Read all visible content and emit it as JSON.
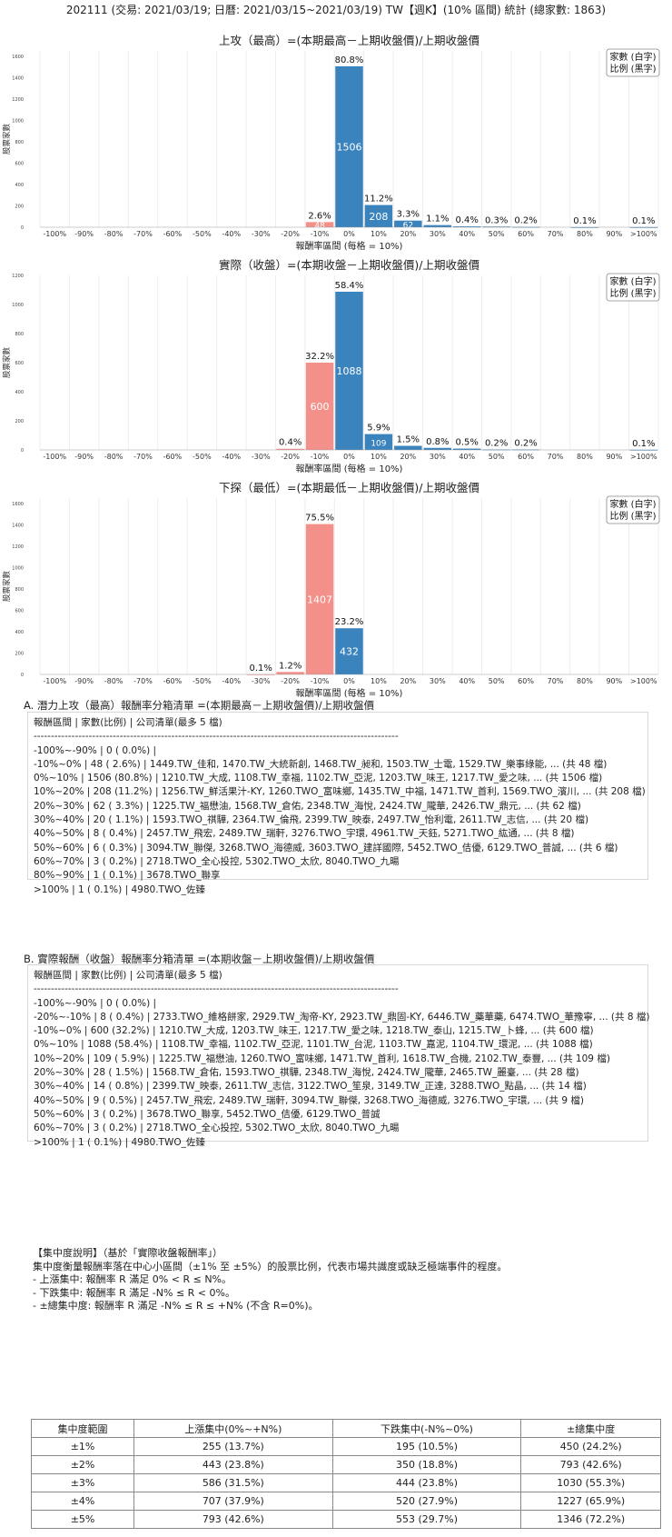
{
  "page_title": "202111 (交易: 2021/03/19; 日曆: 2021/03/15~2021/03/19) TW【週K】(10% 區間) 統計 (總家數: 1863)",
  "chart_data": [
    {
      "type": "bar",
      "title": "上攻（最高）=(本期最高－上期收盤價)/上期收盤價",
      "xlabel": "報酬率區間 (每格 = 10%)",
      "ylabel": "股票家數",
      "legend": [
        "家數 (白字)",
        "比例 (黑字)"
      ],
      "legend_position": "top-right",
      "categories": [
        "-100%",
        "-90%",
        "-80%",
        "-70%",
        "-60%",
        "-50%",
        "-40%",
        "-30%",
        "-20%",
        "-10%",
        "0%",
        "10%",
        "20%",
        "30%",
        "40%",
        "50%",
        "60%",
        "70%",
        "80%",
        "90%",
        ">100%"
      ],
      "values": [
        0,
        0,
        0,
        0,
        0,
        0,
        0,
        0,
        0,
        48,
        1506,
        208,
        62,
        20,
        8,
        6,
        3,
        0,
        1,
        0,
        1
      ],
      "pct_labels": [
        "",
        "",
        "",
        "",
        "",
        "",
        "",
        "",
        "",
        "2.6%",
        "80.8%",
        "11.2%",
        "3.3%",
        "1.1%",
        "0.4%",
        "0.3%",
        "0.2%",
        "",
        "0.1%",
        "",
        "0.1%"
      ],
      "count_labels": [
        "",
        "",
        "",
        "",
        "",
        "",
        "",
        "",
        "",
        "48",
        "1506",
        "208",
        "62",
        "",
        "",
        "",
        "",
        "",
        "",
        "",
        ""
      ],
      "yticks": [
        0,
        200,
        400,
        600,
        800,
        1000,
        1200,
        1400,
        1600
      ],
      "ylim": [
        0,
        1650
      ],
      "colors": {
        "positive": "#3b83bd",
        "negative": "#f4908a"
      }
    },
    {
      "type": "bar",
      "title": "實際（收盤）=(本期收盤－上期收盤價)/上期收盤價",
      "xlabel": "報酬率區間 (每格 = 10%)",
      "ylabel": "股票家數",
      "legend": [
        "家數 (白字)",
        "比例 (黑字)"
      ],
      "legend_position": "top-right",
      "categories": [
        "-100%",
        "-90%",
        "-80%",
        "-70%",
        "-60%",
        "-50%",
        "-40%",
        "-30%",
        "-20%",
        "-10%",
        "0%",
        "10%",
        "20%",
        "30%",
        "40%",
        "50%",
        "60%",
        "70%",
        "80%",
        "90%",
        ">100%"
      ],
      "values": [
        0,
        0,
        0,
        0,
        0,
        0,
        0,
        0,
        8,
        600,
        1088,
        109,
        28,
        14,
        9,
        3,
        3,
        0,
        0,
        0,
        1
      ],
      "pct_labels": [
        "",
        "",
        "",
        "",
        "",
        "",
        "",
        "",
        "0.4%",
        "32.2%",
        "58.4%",
        "5.9%",
        "1.5%",
        "0.8%",
        "0.5%",
        "0.2%",
        "0.2%",
        "",
        "",
        "",
        "0.1%"
      ],
      "count_labels": [
        "",
        "",
        "",
        "",
        "",
        "",
        "",
        "",
        "",
        "600",
        "1088",
        "109",
        "",
        "",
        "",
        "",
        "",
        "",
        "",
        "",
        ""
      ],
      "yticks": [
        0,
        200,
        400,
        600,
        800,
        1000,
        1200
      ],
      "ylim": [
        0,
        1200
      ],
      "colors": {
        "positive": "#3b83bd",
        "negative": "#f4908a"
      }
    },
    {
      "type": "bar",
      "title": "下探（最低）=(本期最低－上期收盤價)/上期收盤價",
      "xlabel": "報酬率區間 (每格 = 10%)",
      "ylabel": "股票家數",
      "legend": [
        "家數 (白字)",
        "比例 (黑字)"
      ],
      "legend_position": "top-right",
      "categories": [
        "-100%",
        "-90%",
        "-80%",
        "-70%",
        "-60%",
        "-50%",
        "-40%",
        "-30%",
        "-20%",
        "-10%",
        "0%",
        "10%",
        "20%",
        "30%",
        "40%",
        "50%",
        "60%",
        "70%",
        "80%",
        "90%",
        ">100%"
      ],
      "values": [
        0,
        0,
        0,
        0,
        0,
        0,
        0,
        1,
        23,
        1407,
        432,
        0,
        0,
        0,
        0,
        0,
        0,
        0,
        0,
        0,
        0
      ],
      "pct_labels": [
        "",
        "",
        "",
        "",
        "",
        "",
        "",
        "0.1%",
        "1.2%",
        "75.5%",
        "23.2%",
        "",
        "",
        "",
        "",
        "",
        "",
        "",
        "",
        "",
        ""
      ],
      "count_labels": [
        "",
        "",
        "",
        "",
        "",
        "",
        "",
        "",
        "",
        "1407",
        "432",
        "",
        "",
        "",
        "",
        "",
        "",
        "",
        "",
        "",
        ""
      ],
      "yticks": [
        0,
        200,
        400,
        600,
        800,
        1000,
        1200,
        1400,
        1600
      ],
      "ylim": [
        0,
        1650
      ],
      "colors": {
        "positive": "#3b83bd",
        "negative": "#f4908a"
      }
    }
  ],
  "section_a": {
    "heading": "A. 潛力上攻（最高）報酬率分箱清單 =(本期最高－上期收盤價)/上期收盤價",
    "lines": [
      "報酬區間       | 家數(比例)       | 公司清單(最多 5 檔)",
      "----------------------------------------------------------------------------------------------------------",
      "-100%~-90%   |      0 ( 0.0%) |",
      "-10%~0%      |     48 ( 2.6%) | 1449.TW_佳和, 1470.TW_大統新創, 1468.TW_昶和, 1503.TW_士電, 1529.TW_樂事綠能, ... (共 48 檔)",
      "0%~10%       | 1506 (80.8%) | 1210.TW_大成, 1108.TW_幸福, 1102.TW_亞泥, 1203.TW_味王, 1217.TW_愛之味, ... (共 1506 檔)",
      "10%~20%      |   208 (11.2%) | 1256.TW_鮮活果汁-KY, 1260.TWO_富味鄉, 1435.TW_中福, 1471.TW_首利, 1569.TWO_濱川, ... (共 208 檔)",
      "20%~30%      |     62 ( 3.3%) | 1225.TW_福懋油, 1568.TW_倉佑, 2348.TW_海悅, 2424.TW_隴華, 2426.TW_鼎元, ... (共 62 檔)",
      "30%~40%      |     20 ( 1.1%) | 1593.TWO_祺驊, 2364.TW_倫飛, 2399.TW_映泰, 2497.TW_怡利電, 2611.TW_志信, ... (共 20 檔)",
      "40%~50%      |       8 ( 0.4%) | 2457.TW_飛宏, 2489.TW_瑞軒, 3276.TWO_宇環, 4961.TW_天鈺, 5271.TWO_紘通, ... (共 8 檔)",
      "50%~60%      |       6 ( 0.3%) | 3094.TW_聯傑, 3268.TWO_海德威, 3603.TWO_建詳國際, 5452.TWO_佶優, 6129.TWO_普誠, ... (共 6 檔)",
      "60%~70%      |       3 ( 0.2%) | 2718.TWO_全心投控, 5302.TWO_太欣, 8040.TWO_九暘",
      "80%~90%      |       1 ( 0.1%) | 3678.TWO_聯享",
      ">100%        |       1 ( 0.1%) | 4980.TWO_佐臻"
    ]
  },
  "section_b": {
    "heading": "B. 實際報酬（收盤）報酬率分箱清單 =(本期收盤－上期收盤價)/上期收盤價",
    "lines": [
      "報酬區間       | 家數(比例)       | 公司清單(最多 5 檔)",
      "----------------------------------------------------------------------------------------------------------",
      "-100%~-90%   |      0 ( 0.0%) |",
      "-20%~-10%    |       8 ( 0.4%) | 2733.TWO_維格餅家, 2929.TW_淘帝-KY, 2923.TW_鼎固-KY, 6446.TW_藥華藥, 6474.TWO_華豫寧, ... (共 8 檔)",
      "-10%~0%      |   600 (32.2%) | 1210.TW_大成, 1203.TW_味王, 1217.TW_愛之味, 1218.TW_泰山, 1215.TW_卜蜂, ... (共 600 檔)",
      "0%~10%       | 1088 (58.4%) | 1108.TW_幸福, 1102.TW_亞泥, 1101.TW_台泥, 1103.TW_嘉泥, 1104.TW_環泥, ... (共 1088 檔)",
      "10%~20%      |   109 ( 5.9%) | 1225.TW_福懋油, 1260.TWO_富味鄉, 1471.TW_首利, 1618.TW_合機, 2102.TW_泰豐, ... (共 109 檔)",
      "20%~30%      |     28 ( 1.5%) | 1568.TW_倉佑, 1593.TWO_祺驊, 2348.TW_海悅, 2424.TW_隴華, 2465.TW_麗臺, ... (共 28 檔)",
      "30%~40%      |     14 ( 0.8%) | 2399.TW_映泰, 2611.TW_志信, 3122.TWO_笙泉, 3149.TW_正達, 3288.TWO_點晶, ... (共 14 檔)",
      "40%~50%      |       9 ( 0.5%) | 2457.TW_飛宏, 2489.TW_瑞軒, 3094.TW_聯傑, 3268.TWO_海德威, 3276.TWO_宇環, ... (共 9 檔)",
      "50%~60%      |       3 ( 0.2%) | 3678.TWO_聯享, 5452.TWO_佶優, 6129.TWO_普誠",
      "60%~70%      |       3 ( 0.2%) | 2718.TWO_全心投控, 5302.TWO_太欣, 8040.TWO_九暘",
      ">100%        |       1 ( 0.1%) | 4980.TWO_佐臻"
    ]
  },
  "concentration": {
    "lines": [
      "【集中度說明】（基於「實際收盤報酬率」）",
      "集中度衡量報酬率落在中心小區間（±1% 至 ±5%）的股票比例，代表市場共識度或缺乏極端事件的程度。",
      " - 上漲集中: 報酬率 R 滿足 0% < R ≤ N%。",
      " - 下跌集中: 報酬率 R 滿足 -N% ≤ R < 0%。",
      " - ±總集中度: 報酬率 R 滿足 -N% ≤ R ≤ +N% (不含 R=0%)。"
    ],
    "headers": [
      "集中度範圍",
      "上漲集中(0%~+N%)",
      "下跌集中(-N%~0%)",
      "±總集中度"
    ],
    "rows": [
      [
        "±1%",
        "255 (13.7%)",
        "195 (10.5%)",
        "450 (24.2%)"
      ],
      [
        "±2%",
        "443 (23.8%)",
        "350 (18.8%)",
        "793 (42.6%)"
      ],
      [
        "±3%",
        "586 (31.5%)",
        "444 (23.8%)",
        "1030 (55.3%)"
      ],
      [
        "±4%",
        "707 (37.9%)",
        "520 (27.9%)",
        "1227 (65.9%)"
      ],
      [
        "±5%",
        "793 (42.6%)",
        "553 (29.7%)",
        "1346 (72.2%)"
      ]
    ]
  }
}
